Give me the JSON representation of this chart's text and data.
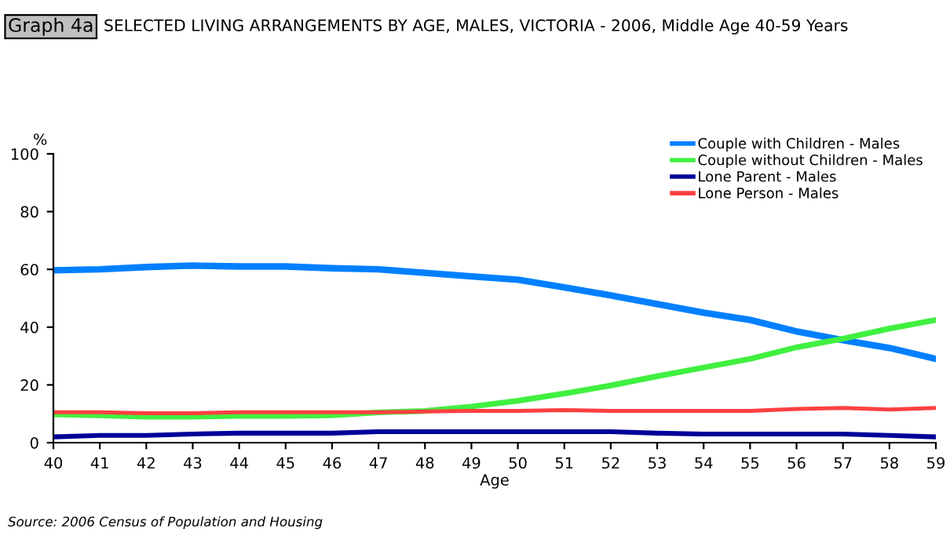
{
  "chart_data": {
    "type": "line",
    "title": "SELECTED LIVING ARRANGEMENTS BY AGE, MALES, VICTORIA - 2006, Middle Age 40-59 Years",
    "xlabel": "Age",
    "ylabel": "%",
    "annotations": [
      "Graph 4a",
      "Source: 2006 Census of Population and Housing"
    ],
    "categories": [
      "40",
      "41",
      "42",
      "43",
      "44",
      "45",
      "46",
      "47",
      "48",
      "49",
      "50",
      "51",
      "52",
      "53",
      "54",
      "55",
      "56",
      "57",
      "58",
      "59"
    ],
    "series": [
      {
        "name": "Couple with Children - Males",
        "color": "#0080ff",
        "values": [
          59.7,
          60,
          60.8,
          61.3,
          61,
          61,
          60.4,
          60,
          58.8,
          57.6,
          56.4,
          53.8,
          51,
          48,
          45,
          42.5,
          38.5,
          35.5,
          32.8,
          29
        ]
      },
      {
        "name": "Couple without Children - Males",
        "color": "#40f040",
        "values": [
          9.8,
          9.5,
          9,
          9,
          9.3,
          9.3,
          9.5,
          10.5,
          11,
          12.5,
          14.5,
          17,
          19.8,
          23,
          26,
          29,
          33,
          36,
          39.5,
          42.5
        ]
      },
      {
        "name": "Lone Parent - Males",
        "color": "#000099",
        "values": [
          2,
          2.5,
          2.5,
          3,
          3.3,
          3.3,
          3.3,
          3.8,
          3.8,
          3.8,
          3.8,
          3.8,
          3.8,
          3.3,
          3,
          3,
          3,
          3,
          2.5,
          2
        ]
      },
      {
        "name": "Lone Person - Males",
        "color": "#ff4040",
        "values": [
          10.5,
          10.5,
          10.2,
          10.2,
          10.5,
          10.5,
          10.5,
          10.5,
          10.8,
          11,
          11,
          11.3,
          11,
          11,
          11,
          11,
          11.7,
          12,
          11.5,
          12
        ]
      }
    ],
    "ylim": [
      0,
      100
    ],
    "yticks": [
      0,
      20,
      40,
      60,
      80,
      100
    ],
    "grid": false,
    "legend": "top right",
    "marker": "none",
    "line_style": "solid"
  }
}
